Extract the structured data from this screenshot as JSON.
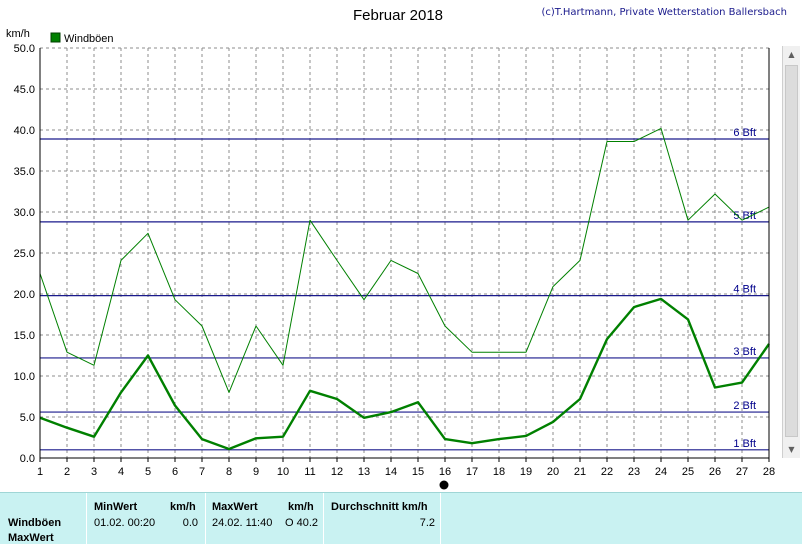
{
  "title": "Februar 2018",
  "copyright": "(c)T.Hartmann, Private Wetterstation Ballersbach",
  "y_unit": "km/h",
  "legend": {
    "label": "Windböen",
    "color": "#008000"
  },
  "colors": {
    "gust_line": "#008000",
    "avg_line": "#008000",
    "beaufort_line": "#1a1a8c",
    "grid": "#8c8c8c",
    "stats_bg": "#c9f2f2"
  },
  "chart_data": {
    "type": "line",
    "title": "Februar 2018",
    "ylabel": "km/h",
    "xlabel": "",
    "x": [
      1,
      2,
      3,
      4,
      5,
      6,
      7,
      8,
      9,
      10,
      11,
      12,
      13,
      14,
      15,
      16,
      17,
      18,
      19,
      20,
      21,
      22,
      23,
      24,
      25,
      26,
      27,
      28
    ],
    "x_ticks": [
      "1",
      "2",
      "3",
      "4",
      "5",
      "6",
      "7",
      "8",
      "9",
      "10",
      "11",
      "12",
      "13",
      "14",
      "15",
      "16",
      "17",
      "18",
      "19",
      "20",
      "21",
      "22",
      "23",
      "24",
      "25",
      "26",
      "27",
      "28"
    ],
    "y_ticks": [
      "0.0",
      "5.0",
      "10.0",
      "15.0",
      "20.0",
      "25.0",
      "30.0",
      "35.0",
      "40.0",
      "45.0",
      "50.0"
    ],
    "xlim": [
      1,
      28
    ],
    "ylim": [
      0,
      50
    ],
    "grid": true,
    "legend_position": "top-left",
    "series": [
      {
        "name": "Windböen",
        "style": "thin",
        "values": [
          22.5,
          12.9,
          11.3,
          24.1,
          27.4,
          19.3,
          16.1,
          8.0,
          16.1,
          11.3,
          29.0,
          24.1,
          19.3,
          24.1,
          22.5,
          16.1,
          12.9,
          12.9,
          12.9,
          20.9,
          24.1,
          38.6,
          38.6,
          40.2,
          29.0,
          32.2,
          29.0,
          30.6
        ]
      },
      {
        "style": "thick",
        "values": [
          4.9,
          3.7,
          2.6,
          8.0,
          12.5,
          6.4,
          2.3,
          1.1,
          2.4,
          2.6,
          8.2,
          7.2,
          4.9,
          5.6,
          6.8,
          2.3,
          1.8,
          2.3,
          2.7,
          4.4,
          7.2,
          14.5,
          18.4,
          19.4,
          16.9,
          8.6,
          9.2,
          13.9
        ]
      }
    ],
    "reference_lines": [
      {
        "label": "1 Bft",
        "value": 1.0
      },
      {
        "label": "2 Bft",
        "value": 5.6
      },
      {
        "label": "3 Bft",
        "value": 12.2
      },
      {
        "label": "4 Bft",
        "value": 19.8
      },
      {
        "label": "5 Bft",
        "value": 28.8
      },
      {
        "label": "6 Bft",
        "value": 38.9
      }
    ]
  },
  "stats": {
    "headers": {
      "min": "MinWert",
      "min_unit": "km/h",
      "max": "MaxWert",
      "max_unit": "km/h",
      "avg": "Durchschnitt km/h"
    },
    "row_label": "Windböen",
    "min_datetime": "01.02.  00:20",
    "min_value": "0.0",
    "max_datetime": "24.02.  11:40",
    "max_value": "O 40.2",
    "avg_value": "7.2",
    "next_row_label": "MaxWert"
  }
}
